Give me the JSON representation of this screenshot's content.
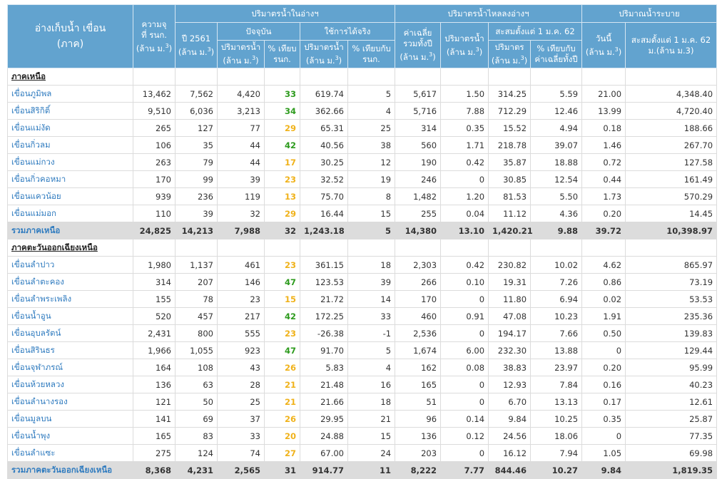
{
  "header": {
    "reservoir": "อ่างเก็บน้ำ เขื่อน",
    "region": "(ภาค)",
    "capacity_1": "ความจุ",
    "capacity_2": "ที่ รนก.",
    "unit": "(ล้าน ม.3)",
    "group_storage": "ปริมาตรน้ำในอ่างฯ",
    "year_2561": "ปี 2561",
    "current": "ปัจจุบัน",
    "usable": "ใช้การได้จริง",
    "volume": "ปริมาตรน้ำ",
    "pct_cap_1": "% เทียบ",
    "pct_cap_2": "รนก.",
    "pct_with_1": "% เทียบกับ",
    "pct_with_2": "รนก.",
    "group_inflow": "ปริมาตรน้ำไหลลงอ่างฯ",
    "avg_1": "ค่าเฉลี่ย",
    "avg_2": "รวมทั้งปี",
    "inflow_vol": "ปริมาตรน้ำ",
    "accum_since": "สะสมตั้งแต่ 1 ม.ค. 62",
    "accum_vol": "ปริมาตร",
    "pct_avg_1": "% เทียบกับ",
    "pct_avg_2": "ค่าเฉลี่ยทั้งปี",
    "group_release": "ปริมาณน้ำระบาย",
    "today": "วันนี้",
    "release_accum_1": "สะสมตั้งแต่ 1 ม.ค. 62",
    "release_accum_2": "ม.(ล้าน ม.3)"
  },
  "colors": {
    "header_bg": "#62a3cf",
    "good": "#2e9b1e",
    "warn": "#f0b21a",
    "link": "#2f7bbf",
    "total_bg": "#dcdcdc"
  },
  "rows": [
    {
      "type": "section",
      "name": "ภาคเหนือ",
      "values": []
    },
    {
      "type": "dam",
      "name": "เขื่อนภูมิพล",
      "values": [
        "13,462",
        "7,562",
        "4,420",
        "33",
        "619.74",
        "5",
        "5,617",
        "1.50",
        "314.25",
        "5.59",
        "21.00",
        "4,348.40"
      ]
    },
    {
      "type": "dam",
      "name": "เขื่อนสิริกิติ์",
      "values": [
        "9,510",
        "6,036",
        "3,213",
        "34",
        "362.66",
        "4",
        "5,716",
        "7.88",
        "712.29",
        "12.46",
        "13.99",
        "4,720.40"
      ]
    },
    {
      "type": "dam",
      "name": "เขื่อนแม่งัด",
      "values": [
        "265",
        "127",
        "77",
        "29",
        "65.31",
        "25",
        "314",
        "0.35",
        "15.52",
        "4.94",
        "0.18",
        "188.66"
      ]
    },
    {
      "type": "dam",
      "name": "เขื่อนกิ่วลม",
      "values": [
        "106",
        "35",
        "44",
        "42",
        "40.56",
        "38",
        "560",
        "1.71",
        "218.78",
        "39.07",
        "1.46",
        "267.70"
      ]
    },
    {
      "type": "dam",
      "name": "เขื่อนแม่กวง",
      "values": [
        "263",
        "79",
        "44",
        "17",
        "30.25",
        "12",
        "190",
        "0.42",
        "35.87",
        "18.88",
        "0.72",
        "127.58"
      ]
    },
    {
      "type": "dam",
      "name": "เขื่อนกิ่วคอหมา",
      "values": [
        "170",
        "99",
        "39",
        "23",
        "32.52",
        "19",
        "246",
        "0",
        "30.85",
        "12.54",
        "0.44",
        "161.49"
      ]
    },
    {
      "type": "dam",
      "name": "เขื่อนแควน้อย",
      "values": [
        "939",
        "236",
        "119",
        "13",
        "75.70",
        "8",
        "1,482",
        "1.20",
        "81.53",
        "5.50",
        "1.73",
        "570.29"
      ]
    },
    {
      "type": "dam",
      "name": "เขื่อนแม่มอก",
      "values": [
        "110",
        "39",
        "32",
        "29",
        "16.44",
        "15",
        "255",
        "0.04",
        "11.12",
        "4.36",
        "0.20",
        "14.45"
      ]
    },
    {
      "type": "total",
      "name": "รวมภาคเหนือ",
      "values": [
        "24,825",
        "14,213",
        "7,988",
        "32",
        "1,243.18",
        "5",
        "14,380",
        "13.10",
        "1,420.21",
        "9.88",
        "39.72",
        "10,398.97"
      ]
    },
    {
      "type": "section",
      "name": "ภาคตะวันออกเฉียงเหนือ",
      "values": []
    },
    {
      "type": "dam",
      "name": "เขื่อนลำปาว",
      "values": [
        "1,980",
        "1,137",
        "461",
        "23",
        "361.15",
        "18",
        "2,303",
        "0.42",
        "230.82",
        "10.02",
        "4.62",
        "865.97"
      ]
    },
    {
      "type": "dam",
      "name": "เขื่อนลำตะคอง",
      "values": [
        "314",
        "207",
        "146",
        "47",
        "123.53",
        "39",
        "266",
        "0.10",
        "19.31",
        "7.26",
        "0.86",
        "73.19"
      ]
    },
    {
      "type": "dam",
      "name": "เขื่อนลำพระเพลิง",
      "values": [
        "155",
        "78",
        "23",
        "15",
        "21.72",
        "14",
        "170",
        "0",
        "11.80",
        "6.94",
        "0.02",
        "53.53"
      ]
    },
    {
      "type": "dam",
      "name": "เขื่อนน้ำอูน",
      "values": [
        "520",
        "457",
        "217",
        "42",
        "172.25",
        "33",
        "460",
        "0.91",
        "47.08",
        "10.23",
        "1.91",
        "235.36"
      ]
    },
    {
      "type": "dam",
      "name": "เขื่อนอุบลรัตน์",
      "values": [
        "2,431",
        "800",
        "555",
        "23",
        "-26.38",
        "-1",
        "2,536",
        "0",
        "194.17",
        "7.66",
        "0.50",
        "139.83"
      ]
    },
    {
      "type": "dam",
      "name": "เขื่อนสิรินธร",
      "values": [
        "1,966",
        "1,055",
        "923",
        "47",
        "91.70",
        "5",
        "1,674",
        "6.00",
        "232.30",
        "13.88",
        "0",
        "129.44"
      ]
    },
    {
      "type": "dam",
      "name": "เขื่อนจุฬาภรณ์",
      "values": [
        "164",
        "108",
        "43",
        "26",
        "5.83",
        "4",
        "162",
        "0.08",
        "38.83",
        "23.97",
        "0.20",
        "95.99"
      ]
    },
    {
      "type": "dam",
      "name": "เขื่อนห้วยหลวง",
      "values": [
        "136",
        "63",
        "28",
        "21",
        "21.48",
        "16",
        "165",
        "0",
        "12.93",
        "7.84",
        "0.16",
        "40.23"
      ]
    },
    {
      "type": "dam",
      "name": "เขื่อนลำนางรอง",
      "values": [
        "121",
        "50",
        "25",
        "21",
        "21.66",
        "18",
        "51",
        "0",
        "6.70",
        "13.13",
        "0.17",
        "12.61"
      ]
    },
    {
      "type": "dam",
      "name": "เขื่อนมูลบน",
      "values": [
        "141",
        "69",
        "37",
        "26",
        "29.95",
        "21",
        "96",
        "0.14",
        "9.84",
        "10.25",
        "0.35",
        "25.87"
      ]
    },
    {
      "type": "dam",
      "name": "เขื่อนน้ำพุง",
      "values": [
        "165",
        "83",
        "33",
        "20",
        "24.88",
        "15",
        "136",
        "0.12",
        "24.56",
        "18.06",
        "0",
        "77.35"
      ]
    },
    {
      "type": "dam",
      "name": "เขื่อนลำแซะ",
      "values": [
        "275",
        "124",
        "74",
        "27",
        "67.00",
        "24",
        "203",
        "0",
        "16.12",
        "7.94",
        "1.05",
        "69.98"
      ]
    },
    {
      "type": "total",
      "name": "รวมภาคตะวันออกเฉียงเหนือ",
      "values": [
        "8,368",
        "4,231",
        "2,565",
        "31",
        "914.77",
        "11",
        "8,222",
        "7.77",
        "844.46",
        "10.27",
        "9.84",
        "1,819.35"
      ]
    }
  ]
}
